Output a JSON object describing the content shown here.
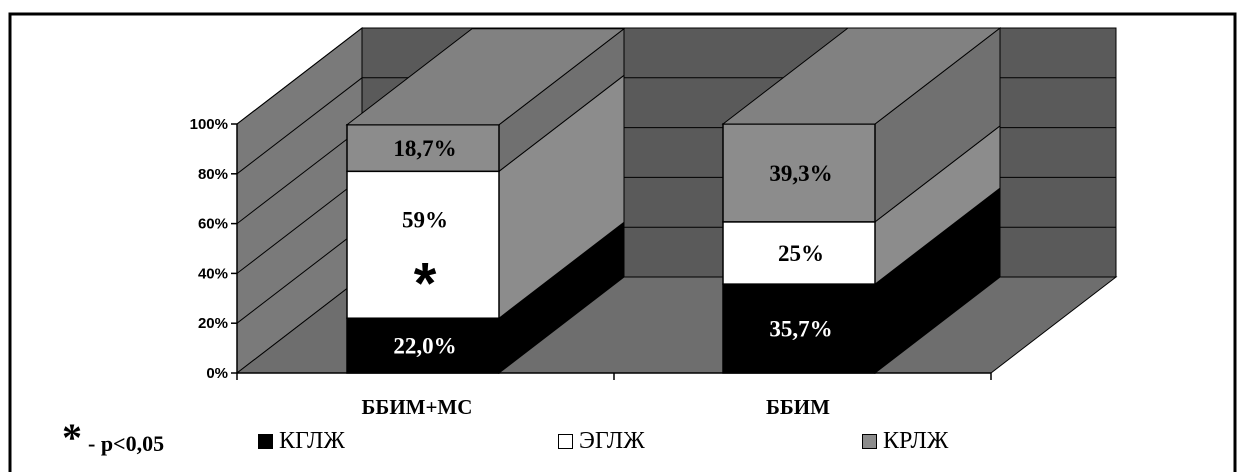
{
  "chart_data": {
    "type": "bar",
    "stacked": true,
    "three_d": true,
    "categories": [
      "ББИМ+МС",
      "ББИМ"
    ],
    "series": [
      {
        "name": "КГЛЖ",
        "color": "#000000",
        "values": [
          22.0,
          35.7
        ],
        "labels": [
          "22,0%",
          "35,7%"
        ]
      },
      {
        "name": "ЭГЛЖ",
        "color": "#ffffff",
        "values": [
          59,
          25
        ],
        "labels": [
          "59%",
          "25%"
        ]
      },
      {
        "name": "КРЛЖ",
        "color": "#8c8c8c",
        "values": [
          18.7,
          39.3
        ],
        "labels": [
          "18,7%",
          "39,3%"
        ]
      }
    ],
    "yticks": [
      "0%",
      "20%",
      "40%",
      "60%",
      "80%",
      "100%"
    ],
    "ylim": [
      0,
      100
    ],
    "legend_position": "bottom",
    "annotations": [
      {
        "category": "ББИМ+МС",
        "series": "ЭГЛЖ",
        "text": "*"
      }
    ]
  },
  "footnote": {
    "symbol": "*",
    "text": "- p<0,05"
  }
}
